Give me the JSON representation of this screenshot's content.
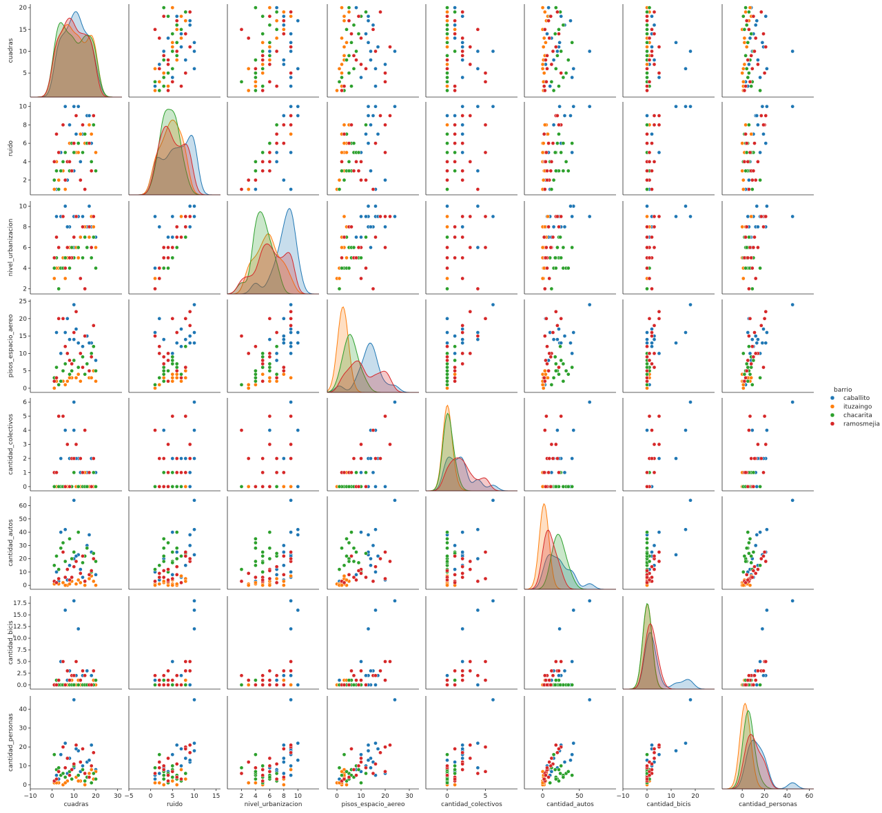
{
  "chart_data": {
    "type": "scatter",
    "variables": [
      "cuadras",
      "ruido",
      "nivel_urbanizacion",
      "pisos_espacio_aereo",
      "cantidad_colectivos",
      "cantidad_autos",
      "cantidad_bicis",
      "cantidad_personas"
    ],
    "diagonal_type": "kde",
    "legend": {
      "title": "barrio",
      "placement": "right",
      "entries": [
        {
          "name": "caballito",
          "color": "#1f77b4"
        },
        {
          "name": "ituzaingo",
          "color": "#ff7f0e"
        },
        {
          "name": "chacarita",
          "color": "#2ca02c"
        },
        {
          "name": "ramosmejia",
          "color": "#d62728"
        }
      ]
    },
    "axes": {
      "cuadras": {
        "label": "cuadras",
        "range": [
          -10,
          32
        ],
        "ticks": [
          -10,
          0,
          10,
          20,
          30
        ],
        "tick_labels": [
          "−10",
          "0",
          "10",
          "20",
          "30"
        ],
        "kde_range": [
          -5,
          25
        ]
      },
      "ruido": {
        "label": "ruido",
        "range": [
          -5,
          16
        ],
        "ticks": [
          -5,
          0,
          5,
          10,
          15
        ],
        "tick_labels": [
          "−5",
          "0",
          "5",
          "10",
          "15"
        ]
      },
      "nivel_urbanizacion": {
        "label": "nivel_urbanizacion",
        "range": [
          0,
          13
        ],
        "ticks": [
          2,
          4,
          6,
          8,
          10
        ],
        "tick_labels": [
          "2",
          "4",
          "6",
          "8",
          "10"
        ],
        "kde_range": [
          0,
          13
        ]
      },
      "pisos_espacio_aereo": {
        "label": "pisos_espacio_aereo",
        "range": [
          -4,
          34
        ],
        "ticks": [
          0,
          10,
          20,
          30
        ],
        "tick_labels": [
          "0",
          "10",
          "20",
          "30"
        ]
      },
      "cantidad_colectivos": {
        "label": "cantidad_colectivos",
        "range": [
          -2.8,
          9.2
        ],
        "ticks": [
          0,
          5
        ],
        "tick_labels": [
          "0",
          "5"
        ],
        "kde_range": [
          -0.3,
          6.5
        ]
      },
      "cantidad_autos": {
        "label": "cantidad_autos",
        "range": [
          -25,
          100
        ],
        "ticks": [
          0,
          50
        ],
        "tick_labels": [
          "0",
          "50"
        ]
      },
      "cantidad_bicis": {
        "label": "cantidad_bicis",
        "range": [
          -10,
          28
        ],
        "ticks": [
          -10,
          0,
          10,
          20
        ],
        "tick_labels": [
          "−10",
          "0",
          "10",
          "20"
        ],
        "kde_range": [
          -1.5,
          19
        ]
      },
      "cantidad_personas": {
        "label": "cantidad_personas",
        "range": [
          -18,
          64
        ],
        "ticks": [
          0,
          20,
          40,
          60
        ],
        "tick_labels": [
          "0",
          "20",
          "40",
          "60"
        ]
      }
    },
    "y_axes": {
      "cuadras": {
        "ticks": [
          5,
          10,
          15,
          20
        ],
        "tick_labels": [
          "5",
          "10",
          "15",
          "20"
        ],
        "range": [
          -0.5,
          20.8
        ]
      },
      "ruido": {
        "ticks": [
          2,
          4,
          6,
          8,
          10
        ],
        "tick_labels": [
          "2",
          "4",
          "6",
          "8",
          "10"
        ],
        "range": [
          0.4,
          10.5
        ]
      },
      "nivel_urbanizacion": {
        "ticks": [
          2,
          4,
          6,
          8,
          10
        ],
        "tick_labels": [
          "2",
          "4",
          "6",
          "8",
          "10"
        ],
        "range": [
          1.5,
          10.5
        ]
      },
      "pisos_espacio_aereo": {
        "ticks": [
          0,
          5,
          10,
          15,
          20,
          25
        ],
        "tick_labels": [
          "0",
          "5",
          "10",
          "15",
          "20",
          "25"
        ],
        "range": [
          -1.2,
          25.5
        ]
      },
      "cantidad_colectivos": {
        "ticks": [
          0,
          1,
          2,
          3,
          4,
          5,
          6
        ],
        "tick_labels": [
          "0",
          "1",
          "2",
          "3",
          "4",
          "5",
          "6"
        ],
        "range": [
          -0.3,
          6.3
        ]
      },
      "cantidad_autos": {
        "ticks": [
          0,
          10,
          20,
          30,
          40,
          50,
          60
        ],
        "tick_labels": [
          "0",
          "10",
          "20",
          "30",
          "40",
          "50",
          "60"
        ],
        "range": [
          -3,
          67
        ]
      },
      "cantidad_bicis": {
        "ticks": [
          0,
          2.5,
          5,
          7.5,
          10,
          12.5,
          15,
          17.5
        ],
        "tick_labels": [
          "0.0",
          "2.5",
          "5.0",
          "7.5",
          "10.0",
          "12.5",
          "15.0",
          "17.5"
        ],
        "range": [
          -0.9,
          19
        ]
      },
      "cantidad_personas": {
        "ticks": [
          0,
          10,
          20,
          30,
          40
        ],
        "tick_labels": [
          "0",
          "10",
          "20",
          "30",
          "40"
        ],
        "range": [
          -2.2,
          47
        ]
      }
    },
    "series": [
      {
        "name": "caballito",
        "points": [
          [
            10,
            10,
            9,
            24,
            6,
            64,
            18,
            45
          ],
          [
            6,
            10,
            10,
            16,
            4,
            42,
            16,
            22
          ],
          [
            12,
            10,
            9,
            13,
            2,
            23,
            12,
            18
          ],
          [
            16,
            9,
            8,
            15,
            1,
            30,
            3,
            12
          ],
          [
            18,
            6,
            8,
            13,
            2,
            25,
            2,
            21
          ],
          [
            4,
            5,
            9,
            10,
            2,
            40,
            5,
            16
          ],
          [
            8,
            8,
            8,
            14,
            2,
            15,
            3,
            14
          ],
          [
            14,
            7,
            9,
            12,
            0,
            6,
            2,
            10
          ],
          [
            20,
            5,
            7,
            8,
            1,
            8,
            0,
            8
          ],
          [
            2,
            1,
            9,
            16,
            0,
            10,
            0,
            5
          ],
          [
            7,
            2,
            8,
            20,
            0,
            4,
            1,
            6
          ],
          [
            10,
            3,
            6,
            14,
            4,
            20,
            0,
            9
          ],
          [
            13,
            4,
            7,
            10,
            1,
            12,
            1,
            7
          ],
          [
            17,
            9,
            10,
            13,
            0,
            38,
            0,
            13
          ],
          [
            3,
            1,
            4,
            1,
            0,
            3,
            1,
            3
          ],
          [
            11,
            7,
            9,
            17,
            2,
            22,
            2,
            19
          ]
        ]
      },
      {
        "name": "ituzaingo",
        "points": [
          [
            1,
            1,
            3,
            0,
            0,
            1,
            0,
            1
          ],
          [
            3,
            2,
            4,
            1,
            0,
            1,
            0,
            1
          ],
          [
            5,
            3,
            5,
            2,
            0,
            2,
            0,
            0
          ],
          [
            7,
            4,
            5,
            2,
            0,
            0,
            0,
            2
          ],
          [
            9,
            3,
            6,
            3,
            0,
            3,
            1,
            3
          ],
          [
            11,
            5,
            6,
            3,
            0,
            1,
            0,
            4
          ],
          [
            13,
            7,
            7,
            2,
            0,
            2,
            0,
            2
          ],
          [
            15,
            6,
            8,
            4,
            1,
            0,
            0,
            0
          ],
          [
            17,
            8,
            7,
            3,
            0,
            5,
            0,
            6
          ],
          [
            19,
            8,
            8,
            5,
            0,
            3,
            1,
            3
          ],
          [
            2,
            4,
            4,
            2,
            0,
            2,
            0,
            1
          ],
          [
            6,
            1,
            3,
            1,
            0,
            0,
            0,
            1
          ],
          [
            8,
            6,
            6,
            3,
            0,
            1,
            0,
            5
          ],
          [
            12,
            5,
            5,
            4,
            0,
            4,
            1,
            2
          ],
          [
            18,
            7,
            9,
            3,
            0,
            7,
            0,
            8
          ],
          [
            20,
            5,
            6,
            2,
            0,
            0,
            0,
            7
          ]
        ]
      },
      {
        "name": "chacarita",
        "points": [
          [
            1,
            2,
            4,
            3,
            0,
            15,
            0,
            16
          ],
          [
            2,
            3,
            5,
            6,
            1,
            22,
            1,
            8
          ],
          [
            4,
            3,
            4,
            2,
            0,
            28,
            0,
            5
          ],
          [
            5,
            4,
            4,
            5,
            0,
            32,
            0,
            6
          ],
          [
            6,
            5,
            5,
            7,
            0,
            18,
            0,
            4
          ],
          [
            8,
            3,
            4,
            4,
            0,
            35,
            0,
            7
          ],
          [
            9,
            6,
            6,
            5,
            0,
            20,
            0,
            3
          ],
          [
            10,
            5,
            5,
            8,
            1,
            25,
            0,
            10
          ],
          [
            12,
            6,
            6,
            6,
            0,
            40,
            0,
            5
          ],
          [
            14,
            5,
            5,
            9,
            0,
            17,
            0,
            8
          ],
          [
            15,
            7,
            7,
            4,
            0,
            22,
            0,
            2
          ],
          [
            16,
            6,
            6,
            7,
            0,
            28,
            0,
            4
          ],
          [
            18,
            4,
            5,
            10,
            0,
            10,
            0,
            1
          ],
          [
            19,
            8,
            7,
            12,
            1,
            24,
            0,
            6
          ],
          [
            20,
            3,
            4,
            5,
            0,
            18,
            1,
            3
          ],
          [
            3,
            1,
            2,
            1,
            0,
            12,
            0,
            9
          ]
        ]
      },
      {
        "name": "ramosmejia",
        "points": [
          [
            1,
            4,
            5,
            2,
            1,
            3,
            0,
            2
          ],
          [
            3,
            5,
            6,
            20,
            5,
            5,
            1,
            7
          ],
          [
            5,
            8,
            9,
            20,
            5,
            25,
            5,
            20
          ],
          [
            7,
            4,
            6,
            10,
            3,
            12,
            3,
            14
          ],
          [
            9,
            3,
            5,
            7,
            2,
            6,
            2,
            8
          ],
          [
            11,
            9,
            9,
            22,
            3,
            18,
            5,
            21
          ],
          [
            13,
            2,
            3,
            10,
            2,
            9,
            1,
            12
          ],
          [
            15,
            1,
            2,
            15,
            4,
            3,
            2,
            6
          ],
          [
            17,
            6,
            8,
            5,
            1,
            8,
            0,
            4
          ],
          [
            19,
            9,
            9,
            18,
            2,
            20,
            3,
            17
          ],
          [
            2,
            7,
            7,
            3,
            1,
            2,
            0,
            3
          ],
          [
            6,
            2,
            4,
            12,
            0,
            6,
            0,
            9
          ],
          [
            8,
            4,
            5,
            8,
            0,
            4,
            1,
            5
          ],
          [
            10,
            6,
            7,
            16,
            2,
            14,
            2,
            11
          ],
          [
            14,
            8,
            8,
            6,
            1,
            22,
            3,
            19
          ],
          [
            18,
            3,
            6,
            9,
            0,
            11,
            0,
            10
          ]
        ]
      }
    ],
    "kde_note": "diagonal shows filled kernel density estimate per barrio"
  }
}
